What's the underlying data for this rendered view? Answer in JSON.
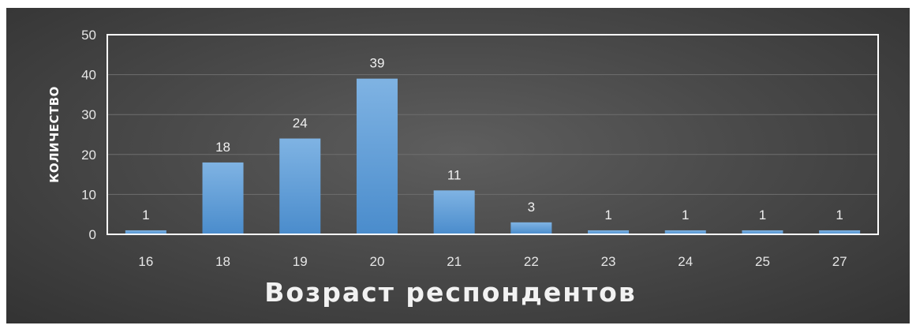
{
  "chart_data": {
    "type": "bar",
    "title": "",
    "xlabel": "Возраст респондентов",
    "ylabel": "КОЛИЧЕСТВО",
    "categories": [
      "16",
      "18",
      "19",
      "20",
      "21",
      "22",
      "23",
      "24",
      "25",
      "27"
    ],
    "values": [
      1,
      18,
      24,
      39,
      11,
      3,
      1,
      1,
      1,
      1
    ],
    "ylim": [
      0,
      50
    ],
    "yticks": [
      "0",
      "10",
      "20",
      "30",
      "40",
      "50"
    ],
    "grid": true,
    "data_labels": true,
    "legend": "none",
    "colors": {
      "bar_top": "#7fb3e3",
      "bar_bottom": "#4a8ccc",
      "background": "#4a4a4a",
      "gridline": "#6e6e6e",
      "plot_border": "#ffffff"
    }
  }
}
